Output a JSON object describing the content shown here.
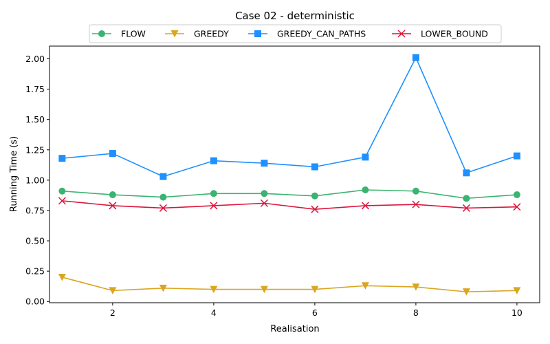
{
  "chart_data": {
    "type": "line",
    "title": "Case 02 - deterministic",
    "xlabel": "Realisation",
    "ylabel": "Running Time (s)",
    "x": [
      1,
      2,
      3,
      4,
      5,
      6,
      7,
      8,
      9,
      10
    ],
    "xlim": [
      0.75,
      10.45
    ],
    "ylim": [
      -0.01,
      2.105
    ],
    "xticks": [
      2,
      4,
      6,
      8,
      10
    ],
    "yticks": [
      0.0,
      0.25,
      0.5,
      0.75,
      1.0,
      1.25,
      1.5,
      1.75,
      2.0
    ],
    "grid": false,
    "legend_position": "top-center",
    "series": [
      {
        "name": "FLOW",
        "color": "#3cb371",
        "marker": "circle",
        "values": [
          0.91,
          0.88,
          0.86,
          0.89,
          0.89,
          0.87,
          0.92,
          0.91,
          0.85,
          0.88
        ]
      },
      {
        "name": "GREEDY",
        "color": "#daa520",
        "marker": "triangle-down",
        "values": [
          0.2,
          0.09,
          0.11,
          0.1,
          0.1,
          0.1,
          0.13,
          0.12,
          0.08,
          0.09
        ]
      },
      {
        "name": "GREEDY_CAN_PATHS",
        "color": "#1e90ff",
        "marker": "square",
        "values": [
          1.18,
          1.22,
          1.03,
          1.16,
          1.14,
          1.11,
          1.19,
          2.01,
          1.06,
          1.2
        ]
      },
      {
        "name": "LOWER_BOUND",
        "color": "#dc143c",
        "marker": "x",
        "values": [
          0.83,
          0.79,
          0.77,
          0.79,
          0.81,
          0.76,
          0.79,
          0.8,
          0.77,
          0.78
        ]
      }
    ]
  }
}
